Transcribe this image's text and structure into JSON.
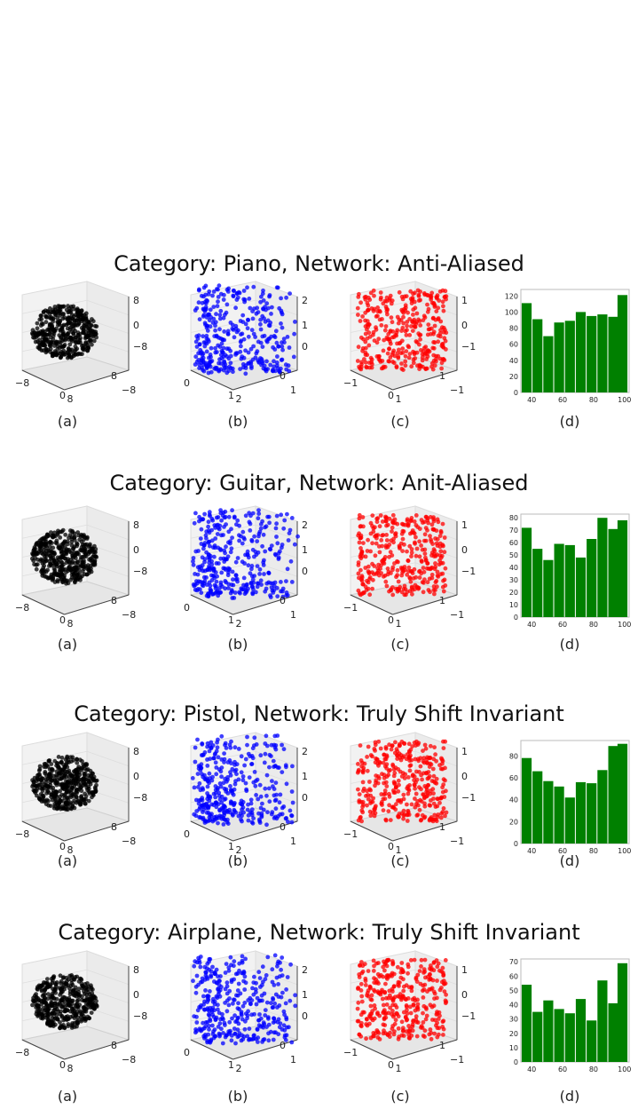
{
  "rows": [
    {
      "title": "Category: Piano,  Network: Anti-Aliased",
      "captions": [
        "(a)",
        "(b)",
        "(c)",
        "(d)"
      ],
      "scatter_a_ticks": {
        "x": [
          "−8",
          "0",
          "8"
        ],
        "y": [
          "8",
          "−8"
        ],
        "z": [
          "8",
          "0",
          "−8"
        ]
      },
      "scatter_b_ticks": {
        "x": [
          "0",
          "1",
          "2"
        ],
        "y": [
          "0",
          "1",
          "2"
        ],
        "z": [
          "2",
          "1",
          "0"
        ]
      },
      "scatter_c_ticks": {
        "x": [
          "−1",
          "0",
          "1"
        ],
        "y": [
          "1",
          "−1"
        ],
        "z": [
          "1",
          "0",
          "−1"
        ]
      }
    },
    {
      "title": "Category: Guitar, Network: Anit-Aliased",
      "captions": [
        "(a)",
        "(b)",
        "(c)",
        "(d)"
      ],
      "scatter_a_ticks": {
        "x": [
          "−8",
          "0",
          "8"
        ],
        "y": [
          "8",
          "−8"
        ],
        "z": [
          "8",
          "0",
          "−8"
        ]
      },
      "scatter_b_ticks": {
        "x": [
          "0",
          "1",
          "2"
        ],
        "y": [
          "0",
          "1",
          "2"
        ],
        "z": [
          "2",
          "1",
          "0"
        ]
      },
      "scatter_c_ticks": {
        "x": [
          "−1",
          "0",
          "1"
        ],
        "y": [
          "1",
          "−1"
        ],
        "z": [
          "1",
          "0",
          "−1"
        ]
      }
    },
    {
      "title": "Category: Pistol, Network: Truly Shift Invariant",
      "captions": [
        "(a)",
        "(b)",
        "(c)",
        "(d)"
      ],
      "scatter_a_ticks": {
        "x": [
          "−8",
          "0",
          "8"
        ],
        "y": [
          "8",
          "−8"
        ],
        "z": [
          "8",
          "0",
          "−8"
        ]
      },
      "scatter_b_ticks": {
        "x": [
          "0",
          "1",
          "2"
        ],
        "y": [
          "0",
          "1",
          "2"
        ],
        "z": [
          "2",
          "1",
          "0"
        ]
      },
      "scatter_c_ticks": {
        "x": [
          "−1",
          "0",
          "1"
        ],
        "y": [
          "1",
          "−1"
        ],
        "z": [
          "1",
          "0",
          "−1"
        ]
      }
    },
    {
      "title": "Category: Airplane, Network: Truly Shift Invariant",
      "captions": [
        "(a)",
        "(b)",
        "(c)",
        "(d)"
      ],
      "scatter_a_ticks": {
        "x": [
          "−8",
          "0",
          "8"
        ],
        "y": [
          "8",
          "−8"
        ],
        "z": [
          "8",
          "0",
          "−8"
        ]
      },
      "scatter_b_ticks": {
        "x": [
          "0",
          "1",
          "2"
        ],
        "y": [
          "0",
          "1",
          "2"
        ],
        "z": [
          "2",
          "1",
          "0"
        ]
      },
      "scatter_c_ticks": {
        "x": [
          "−1",
          "0",
          "1"
        ],
        "y": [
          "1",
          "−1"
        ],
        "z": [
          "1",
          "0",
          "−1"
        ]
      }
    }
  ],
  "colors": {
    "a": "#000000",
    "b": "#0000ff",
    "c": "#ff0000",
    "bar": "#008000"
  },
  "chart_data": [
    {
      "type": "bar",
      "title": "",
      "xlabel": "",
      "ylabel": "",
      "x": [
        37,
        44,
        51,
        58,
        65,
        72,
        79,
        86,
        93,
        99
      ],
      "values": [
        111,
        91,
        70,
        87,
        89,
        100,
        95,
        97,
        94,
        121
      ],
      "xticks": [
        40,
        60,
        80,
        100
      ],
      "yticks": [
        0,
        20,
        40,
        60,
        80,
        100,
        120
      ],
      "xlim": [
        33,
        103
      ],
      "ylim": [
        0,
        128
      ]
    },
    {
      "type": "bar",
      "title": "",
      "xlabel": "",
      "ylabel": "",
      "x": [
        37,
        44,
        51,
        58,
        65,
        72,
        79,
        86,
        93,
        99
      ],
      "values": [
        72,
        55,
        46,
        59,
        58,
        48,
        63,
        80,
        71,
        78
      ],
      "xticks": [
        40,
        60,
        80,
        100
      ],
      "yticks": [
        0,
        10,
        20,
        30,
        40,
        50,
        60,
        70,
        80
      ],
      "xlim": [
        33,
        103
      ],
      "ylim": [
        0,
        83
      ]
    },
    {
      "type": "bar",
      "title": "",
      "xlabel": "",
      "ylabel": "",
      "x": [
        37,
        44,
        51,
        58,
        65,
        72,
        79,
        86,
        93,
        99
      ],
      "values": [
        78,
        66,
        57,
        52,
        42,
        56,
        55,
        67,
        89,
        91
      ],
      "xticks": [
        40,
        60,
        80,
        100
      ],
      "yticks": [
        0,
        20,
        40,
        60,
        80
      ],
      "xlim": [
        33,
        103
      ],
      "ylim": [
        0,
        94
      ]
    },
    {
      "type": "bar",
      "title": "",
      "xlabel": "",
      "ylabel": "",
      "x": [
        37,
        44,
        51,
        58,
        65,
        72,
        79,
        86,
        93,
        99
      ],
      "values": [
        54,
        35,
        43,
        37,
        34,
        44,
        29,
        57,
        41,
        69
      ],
      "xticks": [
        40,
        60,
        80,
        100
      ],
      "yticks": [
        0,
        10,
        20,
        30,
        40,
        50,
        60,
        70
      ],
      "xlim": [
        33,
        103
      ],
      "ylim": [
        0,
        72
      ]
    }
  ]
}
